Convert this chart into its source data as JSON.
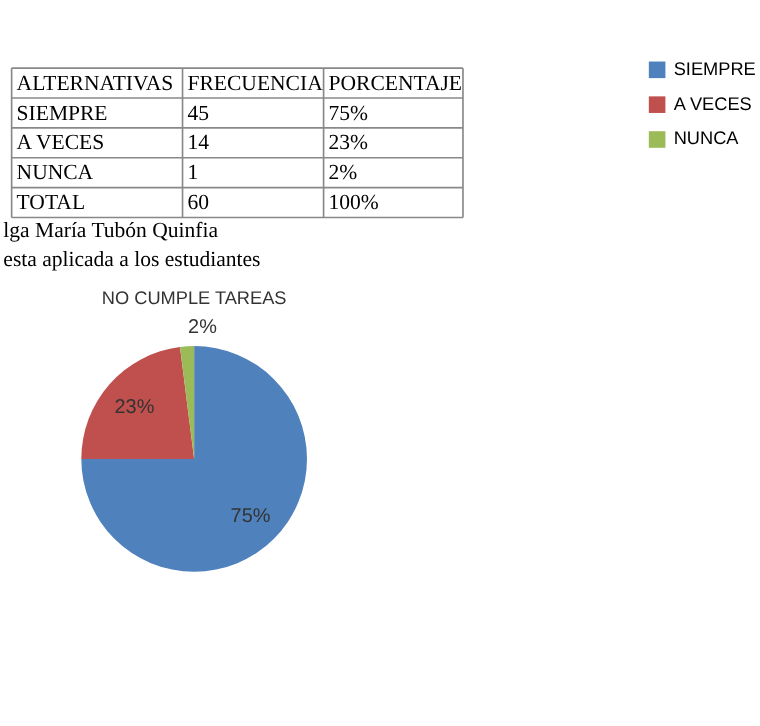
{
  "chart_data": {
    "type": "pie",
    "title": "NO CUMPLE TAREAS",
    "categories": [
      "SIEMPRE",
      "A VECES",
      "NUNCA"
    ],
    "values": [
      75,
      23,
      2
    ],
    "colors": [
      "#4f81bd",
      "#c0504d",
      "#9bbb59"
    ],
    "value_labels": [
      "75%",
      "23%",
      "2%"
    ],
    "legend": "right",
    "annotations": [
      "ALTERNATIVAS",
      "FRECUENCIA",
      "PORCENTAJE",
      "SIEMPRE",
      "45",
      "75%",
      "A VECES",
      "14",
      "23%",
      "NUNCA",
      "1",
      "2%",
      "TOTAL",
      "60",
      "100%",
      "lga María Tubón Quinfia",
      "esta aplicada a los estudiantes"
    ]
  }
}
